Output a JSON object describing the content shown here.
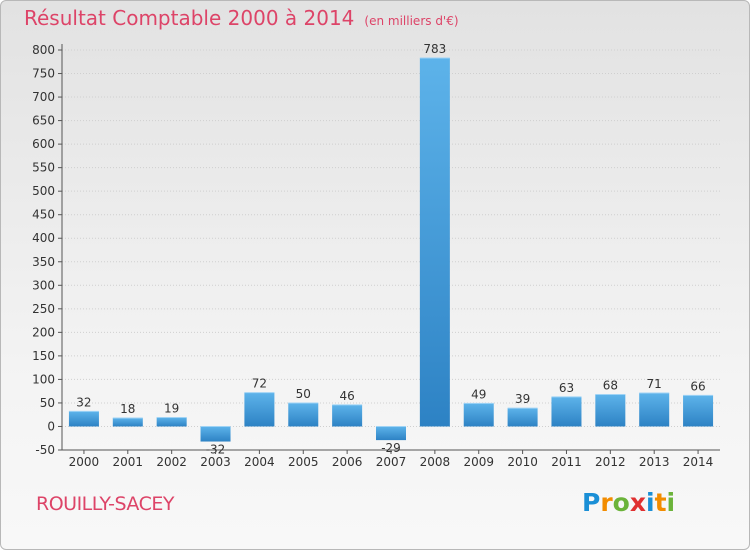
{
  "title": "Résultat Comptable 2000 à 2014",
  "subtitle": "(en milliers d'€)",
  "commune": "ROUILLY-SACEY",
  "logo": {
    "text": "Proxiti",
    "letters": [
      "P",
      "r",
      "o",
      "x",
      "i",
      "t",
      "i"
    ],
    "colors": [
      "#1a8fd6",
      "#f28c00",
      "#6bb33a",
      "#e03030",
      "#1a8fd6",
      "#f28c00",
      "#6bb33a"
    ]
  },
  "colors": {
    "title": "#dd4468",
    "bar_light": "#5db3ea",
    "bar_dark": "#2d82c4"
  },
  "chart_data": {
    "type": "bar",
    "categories": [
      "2000",
      "2001",
      "2002",
      "2003",
      "2004",
      "2005",
      "2006",
      "2007",
      "2008",
      "2009",
      "2010",
      "2011",
      "2012",
      "2013",
      "2014"
    ],
    "values": [
      32,
      18,
      19,
      -32,
      72,
      50,
      46,
      -29,
      783,
      49,
      39,
      63,
      68,
      71,
      66
    ],
    "ylim": [
      -50,
      800
    ],
    "yticks": [
      -50,
      0,
      50,
      100,
      150,
      200,
      250,
      300,
      350,
      400,
      450,
      500,
      550,
      600,
      650,
      700,
      750,
      800
    ],
    "grid": true,
    "xlabel": "",
    "ylabel": ""
  }
}
